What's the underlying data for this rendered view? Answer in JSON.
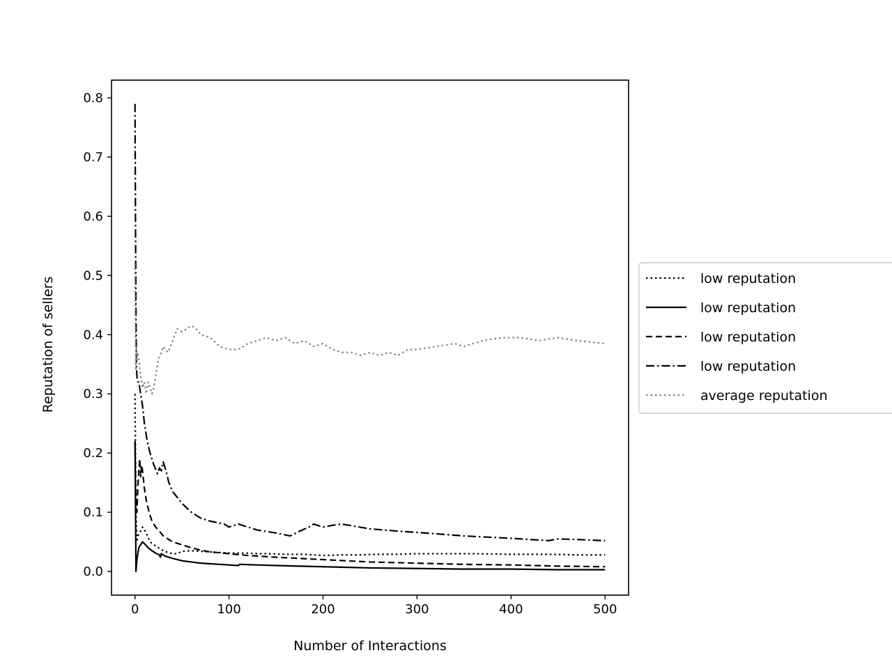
{
  "chart_data": {
    "type": "line",
    "title": "",
    "xlabel": "Number of Interactions",
    "ylabel": "Reputation of sellers",
    "xlim": [
      -25,
      525
    ],
    "ylim": [
      -0.04,
      0.83
    ],
    "xticks": [
      0,
      100,
      200,
      300,
      400,
      500
    ],
    "yticks": [
      0.0,
      0.1,
      0.2,
      0.3,
      0.4,
      0.5,
      0.6,
      0.7,
      0.8
    ],
    "grid": false,
    "legend_position": "outside-right",
    "series": [
      {
        "name": "low reputation",
        "color": "#000000",
        "style": "dotted",
        "x": [
          0,
          1,
          2,
          3,
          5,
          8,
          12,
          16,
          20,
          25,
          30,
          35,
          40,
          45,
          50,
          60,
          70,
          80,
          90,
          100,
          110,
          120,
          130,
          140,
          160,
          180,
          200,
          220,
          240,
          260,
          280,
          300,
          330,
          360,
          400,
          440,
          470,
          500
        ],
        "y": [
          0.3,
          0.1,
          0.05,
          0.06,
          0.065,
          0.075,
          0.065,
          0.05,
          0.045,
          0.04,
          0.035,
          0.032,
          0.03,
          0.03,
          0.034,
          0.035,
          0.034,
          0.033,
          0.032,
          0.031,
          0.031,
          0.031,
          0.03,
          0.03,
          0.029,
          0.029,
          0.027,
          0.028,
          0.028,
          0.029,
          0.029,
          0.03,
          0.03,
          0.03,
          0.029,
          0.029,
          0.028,
          0.028
        ]
      },
      {
        "name": "low reputation",
        "color": "#000000",
        "style": "solid",
        "x": [
          0,
          0.5,
          1,
          2,
          3,
          4,
          6,
          8,
          10,
          14,
          18,
          22,
          26,
          27,
          28,
          32,
          40,
          50,
          60,
          70,
          80,
          90,
          100,
          110,
          111,
          130,
          150,
          200,
          250,
          300,
          350,
          400,
          450,
          500
        ],
        "y": [
          0.22,
          0.12,
          0.0,
          0.02,
          0.03,
          0.04,
          0.045,
          0.05,
          0.047,
          0.04,
          0.035,
          0.031,
          0.028,
          0.024,
          0.03,
          0.026,
          0.022,
          0.018,
          0.016,
          0.014,
          0.013,
          0.012,
          0.011,
          0.01,
          0.012,
          0.011,
          0.01,
          0.008,
          0.006,
          0.005,
          0.004,
          0.004,
          0.003,
          0.003
        ]
      },
      {
        "name": "low reputation",
        "color": "#000000",
        "style": "dashed",
        "x": [
          0,
          1,
          2,
          3,
          4,
          5,
          6,
          7,
          8,
          10,
          12,
          15,
          18,
          22,
          26,
          30,
          35,
          40,
          50,
          60,
          70,
          80,
          100,
          120,
          150,
          200,
          250,
          300,
          350,
          400,
          450,
          500
        ],
        "y": [
          0.22,
          0.12,
          0.1,
          0.14,
          0.17,
          0.19,
          0.16,
          0.18,
          0.17,
          0.14,
          0.12,
          0.1,
          0.085,
          0.075,
          0.068,
          0.06,
          0.055,
          0.05,
          0.045,
          0.04,
          0.036,
          0.033,
          0.03,
          0.027,
          0.024,
          0.02,
          0.016,
          0.014,
          0.012,
          0.011,
          0.009,
          0.008
        ]
      },
      {
        "name": "low reputation",
        "color": "#000000",
        "style": "dashdot",
        "x": [
          0,
          0.5,
          1,
          1.5,
          2,
          3,
          4,
          6,
          8,
          10,
          13,
          16,
          20,
          24,
          26,
          28,
          30,
          33,
          36,
          40,
          50,
          60,
          70,
          80,
          95,
          100,
          110,
          130,
          150,
          165,
          175,
          185,
          190,
          200,
          210,
          220,
          250,
          280,
          300,
          350,
          400,
          440,
          450,
          470,
          500
        ],
        "y": [
          0.79,
          0.6,
          0.45,
          0.35,
          0.33,
          0.32,
          0.32,
          0.3,
          0.28,
          0.25,
          0.22,
          0.2,
          0.18,
          0.165,
          0.175,
          0.17,
          0.185,
          0.17,
          0.15,
          0.135,
          0.115,
          0.1,
          0.09,
          0.085,
          0.08,
          0.075,
          0.08,
          0.07,
          0.065,
          0.06,
          0.068,
          0.075,
          0.08,
          0.075,
          0.078,
          0.08,
          0.072,
          0.068,
          0.066,
          0.06,
          0.056,
          0.052,
          0.055,
          0.054,
          0.052
        ]
      },
      {
        "name": "average reputation",
        "color": "#808080",
        "style": "dotted",
        "x": [
          0,
          0.5,
          1,
          1.5,
          2,
          3,
          4,
          6,
          8,
          10,
          12,
          14,
          16,
          18,
          20,
          22,
          25,
          28,
          30,
          35,
          40,
          45,
          50,
          55,
          60,
          65,
          70,
          80,
          90,
          100,
          110,
          120,
          130,
          140,
          150,
          160,
          170,
          180,
          190,
          200,
          210,
          220,
          230,
          240,
          250,
          260,
          270,
          280,
          290,
          300,
          320,
          340,
          350,
          370,
          390,
          410,
          430,
          450,
          470,
          500
        ],
        "y": [
          0.52,
          0.42,
          0.34,
          0.38,
          0.36,
          0.37,
          0.36,
          0.33,
          0.31,
          0.32,
          0.3,
          0.32,
          0.31,
          0.3,
          0.31,
          0.33,
          0.36,
          0.37,
          0.38,
          0.37,
          0.39,
          0.41,
          0.405,
          0.41,
          0.415,
          0.41,
          0.4,
          0.395,
          0.38,
          0.375,
          0.375,
          0.385,
          0.39,
          0.395,
          0.39,
          0.395,
          0.385,
          0.39,
          0.38,
          0.385,
          0.375,
          0.37,
          0.37,
          0.365,
          0.37,
          0.365,
          0.37,
          0.365,
          0.375,
          0.375,
          0.38,
          0.385,
          0.38,
          0.39,
          0.395,
          0.395,
          0.39,
          0.395,
          0.39,
          0.385
        ]
      }
    ]
  }
}
